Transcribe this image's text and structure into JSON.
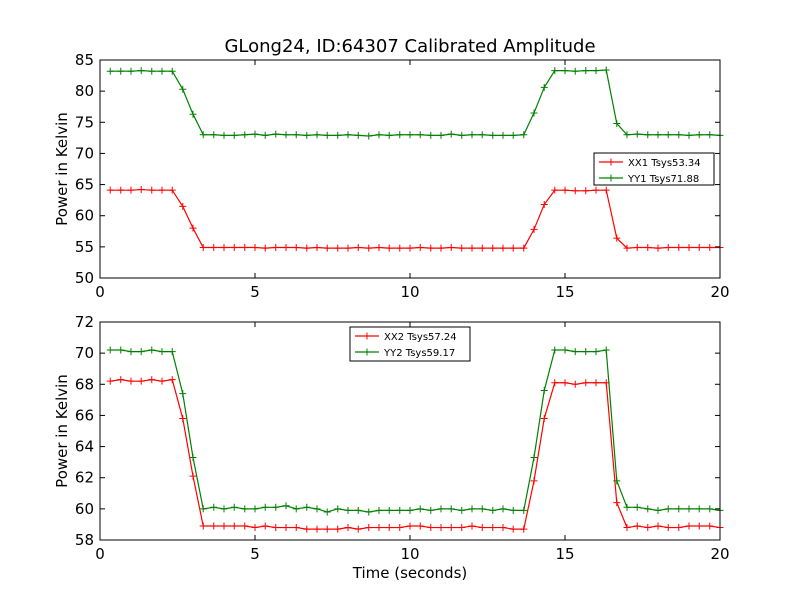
{
  "chart_data": [
    {
      "type": "line",
      "title": "GLong24, ID:64307 Calibrated Amplitude",
      "xlabel": "",
      "ylabel": "Power in Kelvin",
      "xlim": [
        0,
        20
      ],
      "ylim": [
        50,
        85
      ],
      "xticks": [
        0,
        5,
        10,
        15,
        20
      ],
      "yticks": [
        50,
        55,
        60,
        65,
        70,
        75,
        80,
        85
      ],
      "legend_position": "right",
      "x": [
        0.33,
        0.67,
        1.0,
        1.33,
        1.67,
        2.0,
        2.33,
        2.67,
        3.0,
        3.33,
        3.67,
        4.0,
        4.33,
        4.67,
        5.0,
        5.33,
        5.67,
        6.0,
        6.33,
        6.67,
        7.0,
        7.33,
        7.67,
        8.0,
        8.33,
        8.67,
        9.0,
        9.33,
        9.67,
        10.0,
        10.33,
        10.67,
        11.0,
        11.33,
        11.67,
        12.0,
        12.33,
        12.67,
        13.0,
        13.33,
        13.67,
        14.0,
        14.33,
        14.67,
        15.0,
        15.33,
        15.67,
        16.0,
        16.33,
        16.67,
        17.0,
        17.33,
        17.67,
        18.0,
        18.33,
        18.67,
        19.0,
        19.33,
        19.67,
        20.0
      ],
      "series": [
        {
          "name": "XX1 Tsys53.34",
          "color": "#ff0000",
          "values": [
            64.1,
            64.1,
            64.1,
            64.2,
            64.1,
            64.1,
            64.1,
            61.5,
            58.0,
            54.9,
            54.9,
            54.9,
            54.9,
            54.9,
            54.9,
            54.8,
            54.9,
            54.9,
            54.9,
            54.8,
            54.9,
            54.8,
            54.8,
            54.8,
            54.9,
            54.8,
            54.9,
            54.8,
            54.8,
            54.8,
            54.9,
            54.8,
            54.8,
            54.9,
            54.8,
            54.8,
            54.8,
            54.8,
            54.8,
            54.8,
            54.8,
            57.8,
            61.8,
            64.1,
            64.1,
            64.0,
            64.0,
            64.1,
            64.1,
            56.4,
            54.8,
            54.9,
            54.9,
            54.8,
            54.9,
            54.9,
            54.9,
            54.9,
            54.9,
            54.9
          ]
        },
        {
          "name": "YY1 Tsys71.88",
          "color": "#008000",
          "values": [
            83.2,
            83.2,
            83.2,
            83.3,
            83.2,
            83.2,
            83.2,
            80.3,
            76.3,
            73.0,
            73.0,
            72.9,
            72.9,
            73.0,
            73.1,
            72.9,
            73.1,
            73.0,
            73.0,
            72.9,
            73.0,
            72.9,
            72.9,
            73.0,
            72.9,
            72.8,
            73.0,
            72.9,
            73.0,
            73.0,
            73.0,
            72.9,
            72.9,
            73.1,
            72.9,
            73.0,
            73.0,
            72.9,
            72.9,
            72.9,
            73.0,
            76.5,
            80.6,
            83.3,
            83.3,
            83.2,
            83.3,
            83.3,
            83.4,
            74.8,
            73.0,
            73.1,
            73.0,
            73.0,
            73.0,
            73.0,
            72.9,
            73.0,
            73.0,
            72.9
          ]
        }
      ]
    },
    {
      "type": "line",
      "title": "",
      "xlabel": "Time (seconds)",
      "ylabel": "Power in Kelvin",
      "xlim": [
        0,
        20
      ],
      "ylim": [
        58,
        72
      ],
      "xticks": [
        0,
        5,
        10,
        15,
        20
      ],
      "yticks": [
        58,
        60,
        62,
        64,
        66,
        68,
        70,
        72
      ],
      "legend_position": "top-center",
      "x": [
        0.33,
        0.67,
        1.0,
        1.33,
        1.67,
        2.0,
        2.33,
        2.67,
        3.0,
        3.33,
        3.67,
        4.0,
        4.33,
        4.67,
        5.0,
        5.33,
        5.67,
        6.0,
        6.33,
        6.67,
        7.0,
        7.33,
        7.67,
        8.0,
        8.33,
        8.67,
        9.0,
        9.33,
        9.67,
        10.0,
        10.33,
        10.67,
        11.0,
        11.33,
        11.67,
        12.0,
        12.33,
        12.67,
        13.0,
        13.33,
        13.67,
        14.0,
        14.33,
        14.67,
        15.0,
        15.33,
        15.67,
        16.0,
        16.33,
        16.67,
        17.0,
        17.33,
        17.67,
        18.0,
        18.33,
        18.67,
        19.0,
        19.33,
        19.67,
        20.0
      ],
      "series": [
        {
          "name": "XX2 Tsys57.24",
          "color": "#ff0000",
          "values": [
            68.2,
            68.3,
            68.2,
            68.2,
            68.3,
            68.2,
            68.3,
            65.8,
            62.1,
            58.9,
            58.9,
            58.9,
            58.9,
            58.9,
            58.8,
            58.9,
            58.8,
            58.8,
            58.8,
            58.7,
            58.7,
            58.7,
            58.7,
            58.8,
            58.7,
            58.8,
            58.8,
            58.8,
            58.8,
            58.9,
            58.9,
            58.8,
            58.8,
            58.8,
            58.8,
            58.9,
            58.8,
            58.8,
            58.8,
            58.7,
            58.7,
            61.8,
            65.8,
            68.1,
            68.1,
            68.0,
            68.1,
            68.1,
            68.1,
            60.4,
            58.8,
            58.9,
            58.8,
            58.9,
            58.8,
            58.8,
            58.9,
            58.9,
            58.9,
            58.8
          ]
        },
        {
          "name": "YY2 Tsys59.17",
          "color": "#008000",
          "values": [
            70.2,
            70.2,
            70.1,
            70.1,
            70.2,
            70.1,
            70.1,
            67.4,
            63.3,
            60.0,
            60.1,
            60.0,
            60.1,
            60.0,
            60.0,
            60.1,
            60.1,
            60.2,
            60.0,
            60.1,
            60.0,
            59.8,
            60.0,
            59.9,
            59.9,
            59.8,
            59.9,
            59.9,
            59.9,
            59.9,
            60.0,
            59.9,
            60.0,
            60.0,
            59.9,
            60.0,
            60.0,
            59.9,
            60.0,
            59.9,
            59.9,
            63.3,
            67.6,
            70.2,
            70.2,
            70.1,
            70.1,
            70.1,
            70.2,
            61.8,
            60.1,
            60.1,
            60.0,
            59.9,
            60.0,
            60.0,
            60.0,
            60.0,
            60.0,
            59.9
          ]
        }
      ]
    }
  ]
}
